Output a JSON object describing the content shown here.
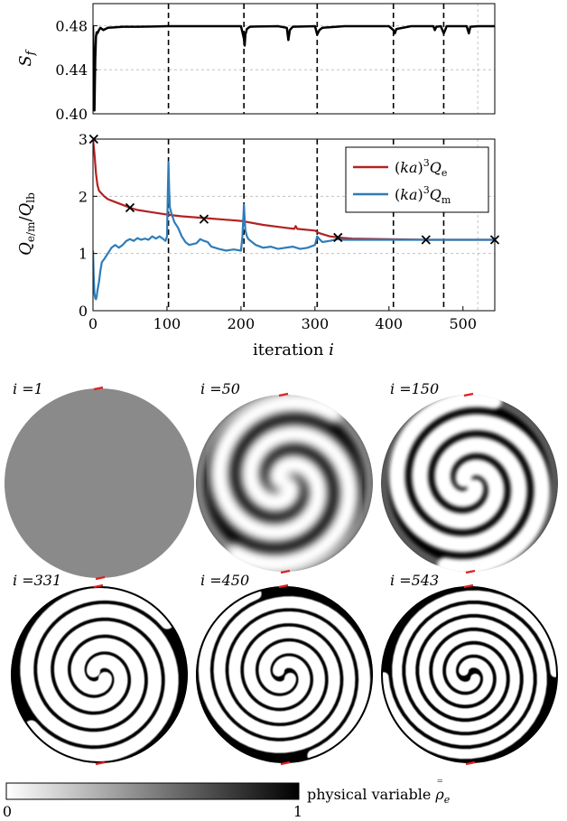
{
  "chart_data": [
    {
      "type": "line",
      "ylabel": "S_f",
      "xlim": [
        0,
        543
      ],
      "ylim": [
        0.4,
        0.5
      ],
      "yticks": [
        0.4,
        0.44,
        0.48
      ],
      "ytick_labels": [
        "0.40",
        "0.44",
        "0.48"
      ],
      "grid": true,
      "vlines": [
        102,
        204,
        303,
        406,
        474
      ],
      "series": [
        {
          "color": "#000000",
          "x": [
            0,
            1,
            2,
            3,
            4,
            5,
            6,
            8,
            10,
            14,
            20,
            30,
            40,
            60,
            80,
            100,
            110,
            130,
            150,
            180,
            200,
            204,
            205,
            206,
            208,
            212,
            220,
            250,
            262,
            264,
            266,
            270,
            300,
            303,
            306,
            310,
            340,
            360,
            380,
            400,
            406,
            408,
            410,
            430,
            450,
            460,
            462,
            464,
            470,
            474,
            476,
            478,
            490,
            505,
            508,
            510,
            520,
            543
          ],
          "y": [
            0.48,
            0.436,
            0.403,
            0.45,
            0.47,
            0.474,
            0.473,
            0.476,
            0.478,
            0.476,
            0.478,
            0.4785,
            0.479,
            0.479,
            0.4792,
            0.4795,
            0.4795,
            0.4795,
            0.4795,
            0.4795,
            0.4795,
            0.468,
            0.462,
            0.472,
            0.477,
            0.479,
            0.4792,
            0.4795,
            0.478,
            0.467,
            0.476,
            0.479,
            0.4795,
            0.472,
            0.476,
            0.478,
            0.4795,
            0.4795,
            0.4795,
            0.4795,
            0.476,
            0.473,
            0.477,
            0.4795,
            0.4795,
            0.4795,
            0.476,
            0.479,
            0.4795,
            0.473,
            0.476,
            0.4795,
            0.4795,
            0.4795,
            0.473,
            0.479,
            0.4795,
            0.4795
          ]
        }
      ]
    },
    {
      "type": "line",
      "xlabel": "iteration i",
      "ylabel": "Q_e/m / Q_lb",
      "xlim": [
        0,
        543
      ],
      "ylim": [
        0,
        3
      ],
      "xticks": [
        0,
        100,
        200,
        300,
        400,
        500
      ],
      "xtick_labels": [
        "0",
        "100",
        "200",
        "300",
        "400",
        "500"
      ],
      "yticks": [
        0,
        1,
        2,
        3
      ],
      "ytick_labels": [
        "0",
        "1",
        "2",
        "3"
      ],
      "grid": true,
      "legend_position": "top-right",
      "vlines": [
        102,
        204,
        303,
        406,
        474
      ],
      "markers": {
        "x": [
          1,
          50,
          150,
          331,
          450,
          543
        ],
        "y": [
          3.0,
          1.8,
          1.6,
          1.28,
          1.24,
          1.24
        ]
      },
      "series": [
        {
          "name": "(ka)^3 Q_e",
          "color": "#b22222",
          "x": [
            0,
            2,
            4,
            6,
            8,
            10,
            15,
            20,
            30,
            40,
            50,
            60,
            80,
            100,
            120,
            150,
            180,
            200,
            230,
            260,
            272,
            274,
            276,
            300,
            305,
            320,
            331,
            350,
            400,
            450,
            500,
            543
          ],
          "y": [
            3.0,
            2.75,
            2.4,
            2.2,
            2.1,
            2.07,
            2.0,
            1.95,
            1.9,
            1.85,
            1.8,
            1.76,
            1.72,
            1.68,
            1.65,
            1.62,
            1.59,
            1.57,
            1.5,
            1.45,
            1.43,
            1.48,
            1.43,
            1.4,
            1.36,
            1.3,
            1.28,
            1.26,
            1.25,
            1.24,
            1.24,
            1.24
          ]
        },
        {
          "name": "(ka)^3 Q_m",
          "color": "#2f7cb8",
          "x": [
            0,
            1,
            2,
            3,
            4,
            5,
            6,
            8,
            10,
            12,
            15,
            20,
            25,
            30,
            35,
            40,
            45,
            50,
            55,
            60,
            65,
            70,
            75,
            80,
            85,
            90,
            95,
            98,
            100,
            101,
            102,
            103,
            104,
            106,
            110,
            115,
            120,
            125,
            130,
            140,
            145,
            150,
            155,
            160,
            170,
            180,
            190,
            200,
            202,
            204,
            205,
            206,
            208,
            210,
            215,
            220,
            230,
            240,
            250,
            260,
            270,
            280,
            290,
            300,
            303,
            306,
            310,
            320,
            331,
            340,
            360,
            400,
            450,
            500,
            543
          ],
          "y": [
            1.05,
            0.6,
            0.3,
            0.22,
            0.2,
            0.25,
            0.35,
            0.5,
            0.7,
            0.85,
            0.9,
            1.0,
            1.1,
            1.15,
            1.1,
            1.15,
            1.22,
            1.25,
            1.22,
            1.27,
            1.24,
            1.26,
            1.24,
            1.3,
            1.26,
            1.3,
            1.25,
            1.22,
            1.3,
            2.0,
            2.6,
            2.1,
            1.8,
            1.7,
            1.55,
            1.45,
            1.3,
            1.2,
            1.15,
            1.18,
            1.25,
            1.22,
            1.2,
            1.12,
            1.08,
            1.05,
            1.07,
            1.05,
            1.3,
            1.85,
            1.6,
            1.4,
            1.3,
            1.25,
            1.2,
            1.15,
            1.1,
            1.12,
            1.08,
            1.1,
            1.12,
            1.08,
            1.1,
            1.15,
            1.3,
            1.25,
            1.2,
            1.22,
            1.25,
            1.24,
            1.24,
            1.24,
            1.24,
            1.24,
            1.24
          ]
        }
      ]
    }
  ],
  "panels": [
    {
      "label": "i =1"
    },
    {
      "label": "i =50"
    },
    {
      "label": "i =150"
    },
    {
      "label": "i =331"
    },
    {
      "label": "i =450"
    },
    {
      "label": "i =543"
    }
  ],
  "colorbar": {
    "min_label": "0",
    "max_label": "1",
    "label": "physical variable"
  },
  "colors": {
    "red_series": "#b22222",
    "blue_series": "#2f7cb8",
    "marker": "#000000",
    "grid": "#b8b8b8",
    "gray_disk": "#8a8a8a"
  }
}
